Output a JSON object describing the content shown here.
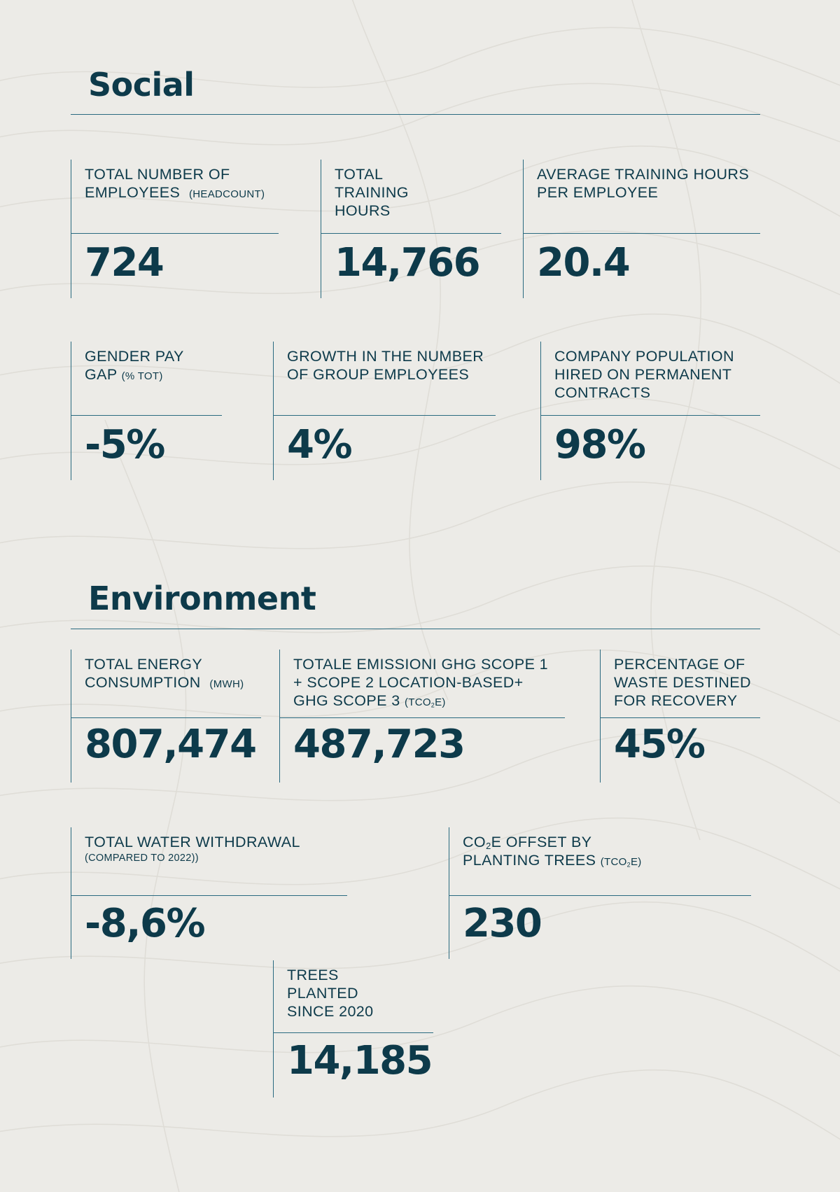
{
  "social": {
    "title": "Social",
    "kpis": [
      {
        "label": "TOTAL NUMBER OF EMPLOYEES",
        "unit": "(HEADCOUNT)",
        "value": "724"
      },
      {
        "label": "TOTAL TRAINING HOURS",
        "value": "14,766"
      },
      {
        "label": "AVERAGE TRAINING HOURS PER EMPLOYEE",
        "value": "20.4"
      },
      {
        "label": "GENDER PAY GAP",
        "unit": "(% TOT)",
        "value": "-5%"
      },
      {
        "label": "GROWTH IN THE NUMBER OF GROUP EMPLOYEES",
        "value": "4%"
      },
      {
        "label": "COMPANY POPULATION HIRED ON PERMANENT CONTRACTS",
        "value": "98%"
      }
    ]
  },
  "environment": {
    "title": "Environment",
    "kpis": [
      {
        "label": "TOTAL ENERGY CONSUMPTION",
        "unit": "(MWH)",
        "value": "807,474"
      },
      {
        "label": "TOTALE EMISSIONI GHG SCOPE 1 + SCOPE 2 LOCATION-BASED+ GHG SCOPE 3",
        "unit_pre": "(TCO",
        "unit_sub": "2",
        "unit_post": "E)",
        "value": "487,723"
      },
      {
        "label": "PERCENTAGE OF WASTE DESTINED FOR RECOVERY",
        "value": "45%"
      },
      {
        "label": "TOTAL WATER WITHDRAWAL",
        "note": "(COMPARED TO 2022))",
        "value": "-8,6%"
      },
      {
        "label_pre": "CO",
        "label_sub": "2",
        "label_post": "E OFFSET BY PLANTING TREES",
        "unit_pre": "(TCO",
        "unit_sub": "2",
        "unit_post": "e)",
        "value": "230"
      },
      {
        "label": "TREES PLANTED SINCE 2020",
        "value": "14,185"
      }
    ]
  }
}
